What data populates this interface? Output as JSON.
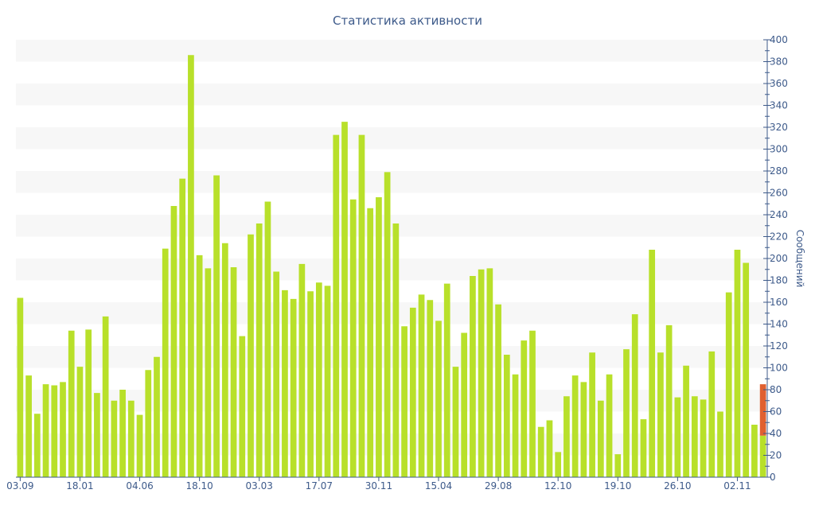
{
  "chart_data": {
    "type": "bar",
    "title": "Статистика активности",
    "ylabel": "Сообщений",
    "ylim": [
      0,
      400
    ],
    "y_ticks": [
      0,
      20,
      40,
      60,
      80,
      100,
      120,
      140,
      160,
      180,
      200,
      220,
      240,
      260,
      280,
      300,
      320,
      340,
      360,
      380,
      400
    ],
    "x_tick_labels": [
      {
        "index": 0,
        "label": "03.09"
      },
      {
        "index": 7,
        "label": "18.01"
      },
      {
        "index": 14,
        "label": "04.06"
      },
      {
        "index": 21,
        "label": "18.10"
      },
      {
        "index": 28,
        "label": "03.03"
      },
      {
        "index": 35,
        "label": "17.07"
      },
      {
        "index": 42,
        "label": "30.11"
      },
      {
        "index": 49,
        "label": "15.04"
      },
      {
        "index": 56,
        "label": "29.08"
      },
      {
        "index": 63,
        "label": "12.10"
      },
      {
        "index": 70,
        "label": "19.10"
      },
      {
        "index": 77,
        "label": "26.10"
      },
      {
        "index": 84,
        "label": "02.11"
      }
    ],
    "grid": "horizontal bands",
    "yaxis_position": "right",
    "series": [
      {
        "color": "#b8e02a",
        "values": [
          164,
          93,
          58,
          85,
          84,
          87,
          134,
          101,
          135,
          77,
          147,
          70,
          80,
          70,
          57,
          98,
          110,
          209,
          248,
          273,
          386,
          203,
          191,
          276,
          214,
          192,
          129,
          222,
          232,
          252,
          188,
          171,
          163,
          195,
          170,
          178,
          175,
          313,
          325,
          254,
          313,
          246,
          256,
          279,
          232,
          138,
          155,
          167,
          162,
          143,
          177,
          101,
          132,
          184,
          190,
          191,
          158,
          112,
          94,
          125,
          134,
          46,
          52,
          23,
          74,
          93,
          87,
          114,
          70,
          94,
          21,
          117,
          149,
          53,
          208,
          114,
          139,
          73,
          102,
          74,
          71,
          115,
          60,
          169,
          208,
          196,
          48,
          38
        ]
      },
      {
        "color": "#e06030",
        "values": [
          0,
          0,
          0,
          0,
          0,
          0,
          0,
          0,
          0,
          0,
          0,
          0,
          0,
          0,
          0,
          0,
          0,
          0,
          0,
          0,
          0,
          0,
          0,
          0,
          0,
          0,
          0,
          0,
          0,
          0,
          0,
          0,
          0,
          0,
          0,
          0,
          0,
          0,
          0,
          0,
          0,
          0,
          0,
          0,
          0,
          0,
          0,
          0,
          0,
          0,
          0,
          0,
          0,
          0,
          0,
          0,
          0,
          0,
          0,
          0,
          0,
          0,
          0,
          0,
          0,
          0,
          0,
          0,
          0,
          0,
          0,
          0,
          0,
          0,
          0,
          0,
          0,
          0,
          0,
          0,
          0,
          0,
          0,
          0,
          0,
          0,
          0,
          47
        ]
      }
    ]
  }
}
